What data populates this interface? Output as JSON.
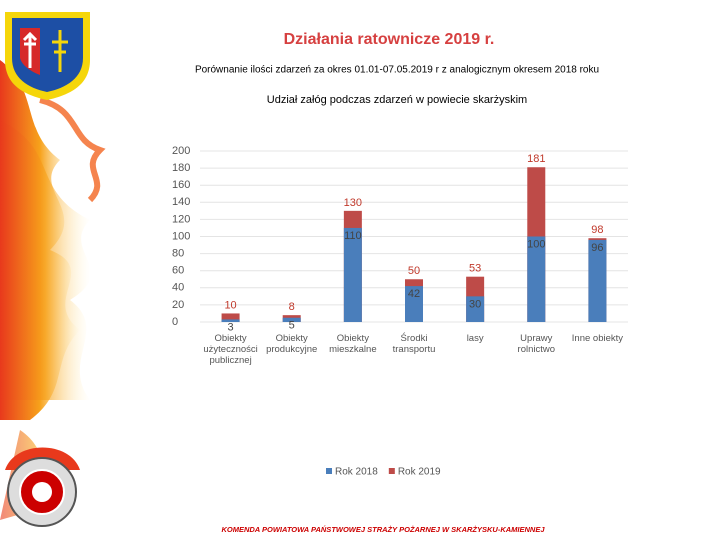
{
  "header": {
    "title": "Działania ratownicze 2019 r.",
    "subtitle": "Porównanie ilości zdarzeń za okres 01.01-07.05.2019 r z analogicznym okresem 2018 roku"
  },
  "chart_data": {
    "type": "bar",
    "title": "Udział załóg podczas zdarzeń  w  powiecie skarżyskim",
    "categories": [
      "Obiekty użyteczności publicznej",
      "Obiekty produkcyjne",
      "Obiekty mieszkalne",
      "Środki transportu",
      "lasy",
      "Uprawy rolnictwo",
      "Inne obiekty"
    ],
    "series": [
      {
        "name": "Rok 2018",
        "color": "#4a7ebb",
        "values": [
          3,
          5,
          110,
          42,
          30,
          100,
          96
        ]
      },
      {
        "name": "Rok 2019",
        "color": "#be4b48",
        "values": [
          10,
          8,
          130,
          50,
          53,
          181,
          98
        ]
      }
    ],
    "ylim": [
      0,
      200
    ],
    "yticks": [
      0,
      20,
      40,
      60,
      80,
      100,
      120,
      140,
      160,
      180,
      200
    ],
    "grid": true,
    "legend": "bottom"
  },
  "footer": "KOMENDA POWIATOWA PAŃSTWOWEJ STRAŻY POŻARNEJ W SKARŻYSKU-KAMIENNEJ"
}
